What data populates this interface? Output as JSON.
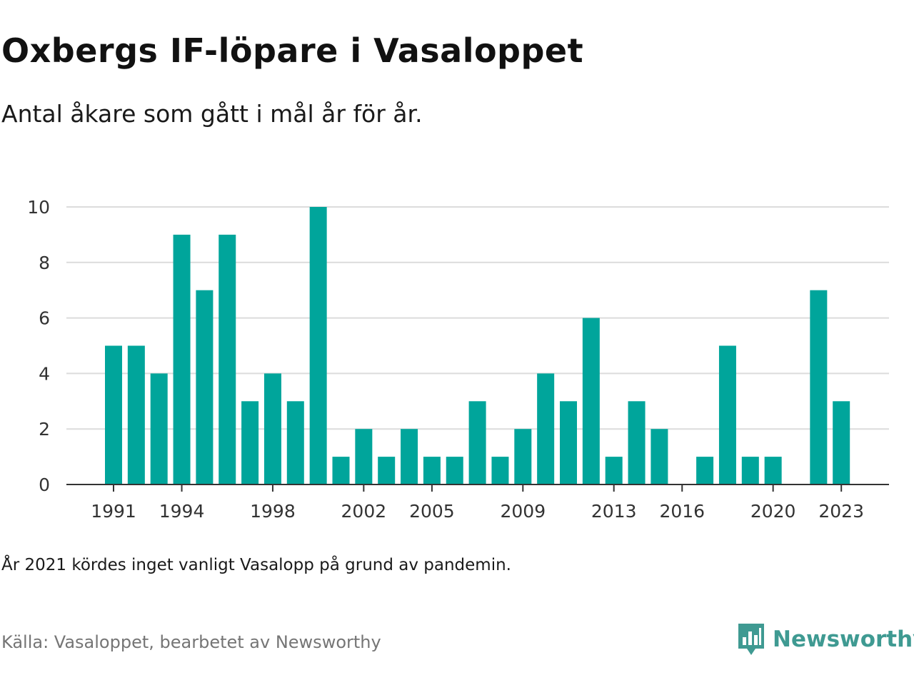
{
  "header": {
    "title": "Oxbergs IF-löpare i Vasaloppet",
    "subtitle": "Antal åkare som gått i mål år för år."
  },
  "footer": {
    "note": "År 2021 kördes inget vanligt Vasalopp på grund av pandemin.",
    "source": "Källa: Vasaloppet, bearbetet av Newsworthy",
    "brand": "Newsworthy",
    "brand_icon": "newsworthy-logo-icon"
  },
  "colors": {
    "bar": "#00a59b",
    "grid": "#dcdcdc",
    "axis": "#333333",
    "brand": "#3f9a92"
  },
  "chart_data": {
    "type": "bar",
    "title": "Oxbergs IF-löpare i Vasaloppet",
    "subtitle": "Antal åkare som gått i mål år för år.",
    "xlabel": "",
    "ylabel": "",
    "categories": [
      1991,
      1992,
      1993,
      1994,
      1995,
      1996,
      1997,
      1998,
      1999,
      2000,
      2001,
      2002,
      2003,
      2004,
      2005,
      2006,
      2007,
      2008,
      2009,
      2010,
      2011,
      2012,
      2013,
      2014,
      2015,
      2016,
      2017,
      2018,
      2019,
      2020,
      2021,
      2022,
      2023
    ],
    "values": [
      5,
      5,
      4,
      9,
      7,
      9,
      3,
      4,
      3,
      10,
      1,
      2,
      1,
      2,
      1,
      1,
      3,
      1,
      2,
      4,
      3,
      6,
      1,
      3,
      2,
      0,
      1,
      5,
      1,
      1,
      0,
      7,
      3
    ],
    "xticks": [
      1991,
      1994,
      1998,
      2002,
      2005,
      2009,
      2013,
      2016,
      2020,
      2023
    ],
    "yticks": [
      0,
      2,
      4,
      6,
      8,
      10
    ],
    "ylim": [
      0,
      10
    ],
    "grid": true,
    "legend": "none"
  }
}
